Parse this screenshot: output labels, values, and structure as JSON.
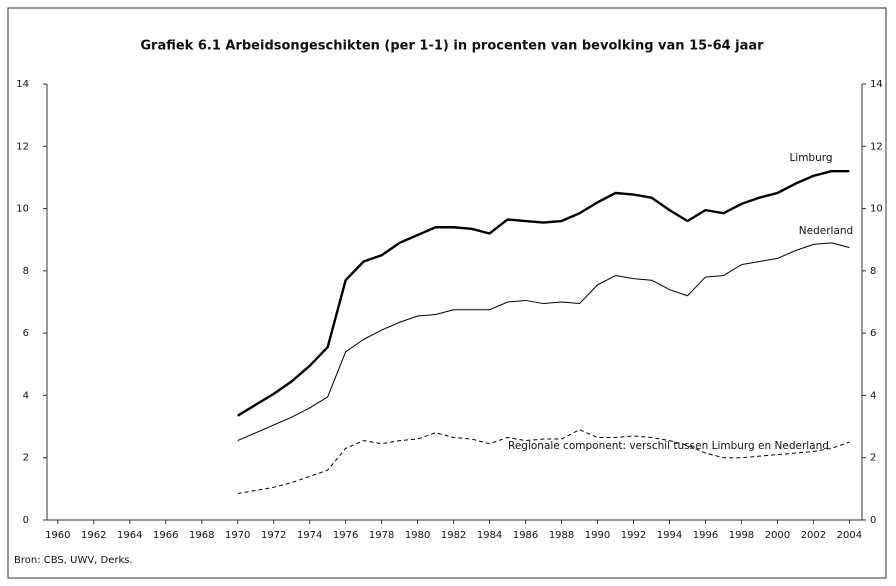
{
  "chart_data": {
    "type": "line",
    "title": "Grafiek 6.1 Arbeidsongeschikten (per 1-1) in procenten van bevolking van 15-64 jaar",
    "source": "Bron: CBS, UWV, Derks.",
    "annotations": [
      "Limburg",
      "Nederland",
      "Regionale component: verschil tussen Limburg en Nederland"
    ],
    "x": [
      1970,
      1971,
      1972,
      1973,
      1974,
      1975,
      1976,
      1977,
      1978,
      1979,
      1980,
      1981,
      1982,
      1983,
      1984,
      1985,
      1986,
      1987,
      1988,
      1989,
      1990,
      1991,
      1992,
      1993,
      1994,
      1995,
      1996,
      1997,
      1998,
      1999,
      2000,
      2001,
      2002,
      2003,
      2004
    ],
    "series": [
      {
        "name": "Limburg",
        "color": "#000000",
        "line_width": 2.4,
        "dash": "solid",
        "values": [
          3.35,
          3.7,
          4.05,
          4.45,
          4.95,
          5.55,
          7.7,
          8.3,
          8.5,
          8.9,
          9.15,
          9.4,
          9.4,
          9.35,
          9.2,
          9.65,
          9.6,
          9.55,
          9.6,
          9.85,
          10.2,
          10.5,
          10.45,
          10.35,
          9.95,
          9.6,
          9.95,
          9.85,
          10.15,
          10.35,
          10.5,
          10.8,
          11.05,
          11.2,
          11.2
        ]
      },
      {
        "name": "Nederland",
        "color": "#000000",
        "line_width": 1,
        "dash": "solid",
        "values": [
          2.55,
          2.8,
          3.05,
          3.3,
          3.6,
          3.95,
          5.4,
          5.8,
          6.1,
          6.35,
          6.55,
          6.6,
          6.75,
          6.75,
          6.75,
          7.0,
          7.05,
          6.95,
          7.0,
          6.95,
          7.55,
          7.85,
          7.75,
          7.7,
          7.4,
          7.2,
          7.8,
          7.85,
          8.2,
          8.3,
          8.4,
          8.65,
          8.85,
          8.9,
          8.75
        ]
      },
      {
        "name": "Regionale component",
        "color": "#000000",
        "line_width": 1,
        "dash": "dashed",
        "values": [
          0.85,
          0.95,
          1.05,
          1.2,
          1.4,
          1.6,
          2.3,
          2.55,
          2.45,
          2.55,
          2.6,
          2.8,
          2.65,
          2.6,
          2.45,
          2.65,
          2.55,
          2.6,
          2.6,
          2.9,
          2.65,
          2.65,
          2.7,
          2.65,
          2.55,
          2.4,
          2.15,
          2.0,
          2.0,
          2.05,
          2.1,
          2.15,
          2.2,
          2.3,
          2.5
        ]
      }
    ],
    "xlim": [
      1959.4,
      2004.7
    ],
    "xticks": [
      1960,
      1962,
      1964,
      1966,
      1968,
      1970,
      1972,
      1974,
      1976,
      1978,
      1980,
      1982,
      1984,
      1986,
      1988,
      1990,
      1992,
      1994,
      1996,
      1998,
      2000,
      2002,
      2004
    ],
    "ylim": [
      0,
      14
    ],
    "yticks": [
      0,
      2,
      4,
      6,
      8,
      10,
      12,
      14
    ],
    "y2lim": [
      0,
      14
    ],
    "y2ticks": [
      0,
      2,
      4,
      6,
      8,
      10,
      12,
      14
    ],
    "grid": false
  }
}
